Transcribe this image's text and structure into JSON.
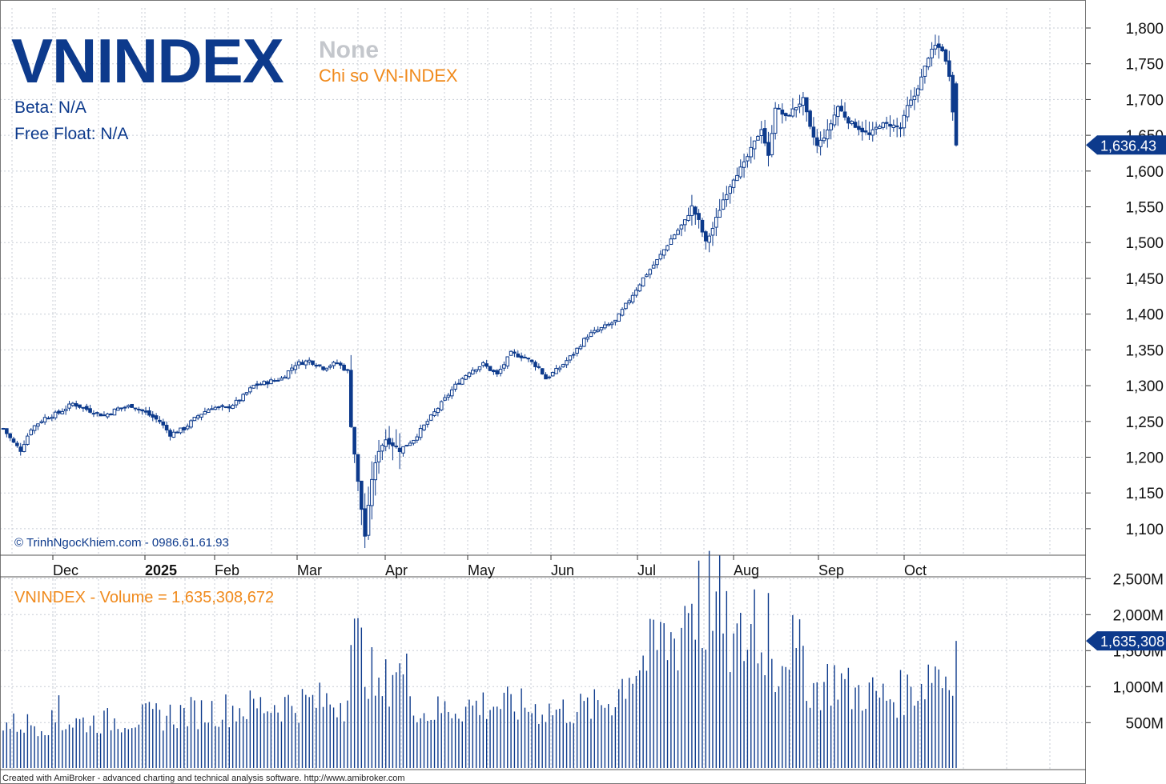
{
  "header": {
    "symbol": "VNINDEX",
    "sub_none": "None",
    "name": "Chi so VN-INDEX",
    "beta": "Beta: N/A",
    "free_float": "Free Float: N/A",
    "watermark": "© TrinhNgocKhiem.com - 0986.61.61.93"
  },
  "volume_title": "VNINDEX - Volume = 1,635,308,672",
  "footer": "Created with AmiBroker - advanced charting and technical analysis software. http://www.amibroker.com",
  "colors": {
    "primary": "#0d3a8c",
    "accent": "#f08a1c",
    "grid": "#c8cdd6",
    "muted": "#c4c7cc"
  },
  "chart_data": [
    {
      "type": "candlestick",
      "title": "VNINDEX",
      "price_ticks": [
        "1,800",
        "1,750",
        "1,700",
        "1,650",
        "1,600",
        "1,550",
        "1,500",
        "1,450",
        "1,400",
        "1,350",
        "1,300",
        "1,250",
        "1,200",
        "1,150",
        "1,100"
      ],
      "ylim": [
        1065,
        1810
      ],
      "x_labels": [
        "Dec",
        "2025",
        "Feb",
        "Mar",
        "Apr",
        "May",
        "Jun",
        "Jul",
        "Aug",
        "Sep",
        "Oct"
      ],
      "last_close": 1636.43,
      "last_label": "1,636.43",
      "anchors": [
        [
          0,
          1240
        ],
        [
          3,
          1220
        ],
        [
          5,
          1210
        ],
        [
          8,
          1240
        ],
        [
          12,
          1255
        ],
        [
          16,
          1262
        ],
        [
          20,
          1275
        ],
        [
          25,
          1265
        ],
        [
          29,
          1258
        ],
        [
          33,
          1268
        ],
        [
          37,
          1272
        ],
        [
          41,
          1262
        ],
        [
          45,
          1250
        ],
        [
          48,
          1232
        ],
        [
          52,
          1240
        ],
        [
          56,
          1258
        ],
        [
          60,
          1270
        ],
        [
          64,
          1268
        ],
        [
          68,
          1280
        ],
        [
          72,
          1300
        ],
        [
          76,
          1305
        ],
        [
          80,
          1310
        ],
        [
          84,
          1330
        ],
        [
          88,
          1335
        ],
        [
          92,
          1325
        ],
        [
          96,
          1332
        ],
        [
          99,
          1320
        ],
        [
          100,
          1245
        ],
        [
          102,
          1165
        ],
        [
          104,
          1090
        ],
        [
          106,
          1170
        ],
        [
          108,
          1210
        ],
        [
          110,
          1225
        ],
        [
          114,
          1210
        ],
        [
          118,
          1225
        ],
        [
          122,
          1250
        ],
        [
          126,
          1275
        ],
        [
          130,
          1300
        ],
        [
          134,
          1320
        ],
        [
          138,
          1330
        ],
        [
          142,
          1315
        ],
        [
          146,
          1345
        ],
        [
          150,
          1340
        ],
        [
          154,
          1325
        ],
        [
          156,
          1310
        ],
        [
          160,
          1325
        ],
        [
          164,
          1345
        ],
        [
          168,
          1370
        ],
        [
          172,
          1380
        ],
        [
          176,
          1390
        ],
        [
          180,
          1420
        ],
        [
          184,
          1450
        ],
        [
          188,
          1475
        ],
        [
          192,
          1505
        ],
        [
          196,
          1530
        ],
        [
          198,
          1550
        ],
        [
          200,
          1530
        ],
        [
          202,
          1500
        ],
        [
          204,
          1520
        ],
        [
          207,
          1560
        ],
        [
          210,
          1590
        ],
        [
          213,
          1610
        ],
        [
          216,
          1640
        ],
        [
          218,
          1660
        ],
        [
          220,
          1620
        ],
        [
          222,
          1690
        ],
        [
          225,
          1675
        ],
        [
          228,
          1690
        ],
        [
          230,
          1700
        ],
        [
          232,
          1660
        ],
        [
          234,
          1635
        ],
        [
          237,
          1655
        ],
        [
          240,
          1690
        ],
        [
          243,
          1670
        ],
        [
          246,
          1660
        ],
        [
          249,
          1650
        ],
        [
          252,
          1665
        ],
        [
          255,
          1665
        ],
        [
          258,
          1660
        ],
        [
          260,
          1690
        ],
        [
          262,
          1705
        ],
        [
          264,
          1730
        ],
        [
          266,
          1760
        ],
        [
          268,
          1775
        ],
        [
          270,
          1770
        ],
        [
          272,
          1735
        ],
        [
          274,
          1636
        ]
      ],
      "n_days": 275
    },
    {
      "type": "bar",
      "title": "VNINDEX - Volume",
      "last_value": 1635308672,
      "last_label": "1,635,308",
      "volume_ticks": [
        "2,500M",
        "2,000M",
        "1,500M",
        "1,000M",
        "500M"
      ],
      "ylim": [
        0,
        2900000000
      ],
      "anchors": [
        [
          0,
          500
        ],
        [
          30,
          550
        ],
        [
          60,
          700
        ],
        [
          80,
          800
        ],
        [
          98,
          850
        ],
        [
          100,
          1750
        ],
        [
          104,
          1500
        ],
        [
          108,
          900
        ],
        [
          112,
          1300
        ],
        [
          116,
          1200
        ],
        [
          120,
          650
        ],
        [
          130,
          750
        ],
        [
          140,
          800
        ],
        [
          150,
          750
        ],
        [
          160,
          700
        ],
        [
          170,
          750
        ],
        [
          176,
          900
        ],
        [
          180,
          1300
        ],
        [
          186,
          1500
        ],
        [
          190,
          1650
        ],
        [
          194,
          1800
        ],
        [
          196,
          2200
        ],
        [
          198,
          2500
        ],
        [
          200,
          1700
        ],
        [
          204,
          2600
        ],
        [
          206,
          2000
        ],
        [
          210,
          1600
        ],
        [
          214,
          1750
        ],
        [
          216,
          2100
        ],
        [
          218,
          1500
        ],
        [
          220,
          2000
        ],
        [
          222,
          1300
        ],
        [
          226,
          1800
        ],
        [
          228,
          1400
        ],
        [
          230,
          1600
        ],
        [
          232,
          1000
        ],
        [
          236,
          1100
        ],
        [
          240,
          1200
        ],
        [
          244,
          950
        ],
        [
          248,
          1000
        ],
        [
          252,
          900
        ],
        [
          256,
          900
        ],
        [
          260,
          1000
        ],
        [
          264,
          1100
        ],
        [
          268,
          1400
        ],
        [
          270,
          1200
        ],
        [
          272,
          1250
        ],
        [
          274,
          1635
        ]
      ],
      "spikes": [
        [
          16,
          880
        ],
        [
          113,
          1200
        ],
        [
          200,
          2750
        ],
        [
          206,
          2820
        ],
        [
          216,
          2350
        ],
        [
          220,
          2300
        ],
        [
          189,
          1900
        ],
        [
          198,
          2150
        ]
      ]
    }
  ]
}
